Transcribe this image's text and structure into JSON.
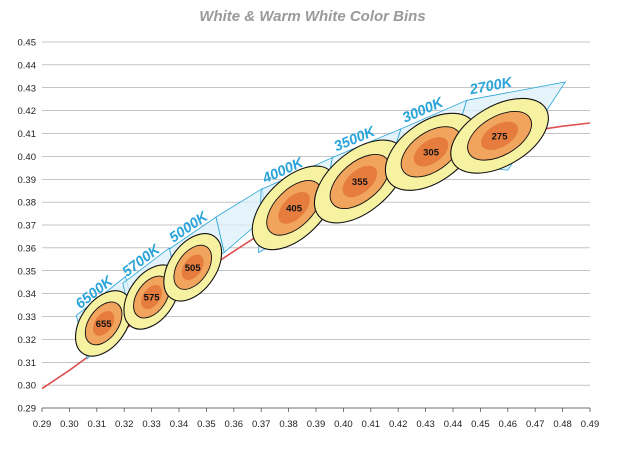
{
  "chart_data": {
    "type": "scatter",
    "title": "White & Warm White Color Bins",
    "xlabel": "",
    "ylabel": "",
    "xlim": [
      0.29,
      0.49
    ],
    "ylim": [
      0.29,
      0.45
    ],
    "x_ticks": [
      "0.29",
      "0.30",
      "0.31",
      "0.32",
      "0.33",
      "0.34",
      "0.35",
      "0.36",
      "0.37",
      "0.38",
      "0.39",
      "0.40",
      "0.41",
      "0.42",
      "0.43",
      "0.44",
      "0.45",
      "0.46",
      "0.47",
      "0.48",
      "0.49"
    ],
    "y_ticks": [
      "0.29",
      "0.30",
      "0.31",
      "0.32",
      "0.33",
      "0.34",
      "0.35",
      "0.36",
      "0.37",
      "0.38",
      "0.39",
      "0.40",
      "0.41",
      "0.42",
      "0.43",
      "0.44",
      "0.45"
    ],
    "grid": "horizontal",
    "colors": {
      "locus": "#e05050",
      "quad_fill": "#dcf0f8",
      "quad_stroke": "#2aa4d9",
      "outer_ellipse": "#f7f1a2",
      "inner_ellipse": "#f1a45e",
      "center_ellipse": "#e67d3e",
      "cct_label": "#2aa4d9"
    },
    "planckian_locus": {
      "x": [
        0.29,
        0.3,
        0.31,
        0.32,
        0.33,
        0.34,
        0.35,
        0.36,
        0.37,
        0.38,
        0.39,
        0.4,
        0.41,
        0.42,
        0.43,
        0.44,
        0.45,
        0.46,
        0.47,
        0.48,
        0.49
      ],
      "y": [
        0.2985,
        0.3065,
        0.3152,
        0.3242,
        0.3332,
        0.342,
        0.3505,
        0.3585,
        0.3663,
        0.3735,
        0.38,
        0.3858,
        0.3911,
        0.3958,
        0.3999,
        0.4035,
        0.4066,
        0.4092,
        0.4114,
        0.4132,
        0.4146
      ]
    },
    "bins": [
      {
        "cct": "6500K",
        "label": "655",
        "quad": [
          [
            0.3025,
            0.3305
          ],
          [
            0.3205,
            0.3475
          ],
          [
            0.3235,
            0.333
          ],
          [
            0.3065,
            0.3115
          ]
        ],
        "ellipse": {
          "cx": 0.3125,
          "cy": 0.327,
          "rx": 0.0092,
          "ry": 0.0095,
          "angle": -55
        }
      },
      {
        "cct": "5700K",
        "label": "575",
        "quad": [
          [
            0.3195,
            0.3445
          ],
          [
            0.3365,
            0.36
          ],
          [
            0.3395,
            0.346
          ],
          [
            0.3225,
            0.3285
          ]
        ],
        "ellipse": {
          "cx": 0.33,
          "cy": 0.3385,
          "rx": 0.009,
          "ry": 0.0094,
          "angle": -55
        }
      },
      {
        "cct": "5000K",
        "label": "505",
        "quad": [
          [
            0.3365,
            0.3595
          ],
          [
            0.3535,
            0.3735
          ],
          [
            0.3565,
            0.358
          ],
          [
            0.3395,
            0.3445
          ]
        ],
        "ellipse": {
          "cx": 0.345,
          "cy": 0.3515,
          "rx": 0.0095,
          "ry": 0.0097,
          "angle": -55
        }
      },
      {
        "cct": "",
        "label": "",
        "quad": [
          [
            0.3535,
            0.3735
          ],
          [
            0.3705,
            0.386
          ],
          [
            0.3715,
            0.3735
          ],
          [
            0.3565,
            0.358
          ]
        ],
        "ellipse": null
      },
      {
        "cct": "4000K",
        "label": "405",
        "quad": [
          [
            0.37,
            0.3855
          ],
          [
            0.396,
            0.3995
          ],
          [
            0.392,
            0.3735
          ],
          [
            0.369,
            0.358
          ]
        ],
        "ellipse": {
          "cx": 0.382,
          "cy": 0.3775,
          "rx": 0.013,
          "ry": 0.012,
          "angle": -45
        }
      },
      {
        "cct": "3500K",
        "label": "355",
        "quad": [
          [
            0.396,
            0.3995
          ],
          [
            0.421,
            0.412
          ],
          [
            0.415,
            0.3895
          ],
          [
            0.392,
            0.3735
          ]
        ],
        "ellipse": {
          "cx": 0.406,
          "cy": 0.389,
          "rx": 0.0135,
          "ry": 0.0125,
          "angle": -40
        }
      },
      {
        "cct": "3000K",
        "label": "305",
        "quad": [
          [
            0.421,
            0.412
          ],
          [
            0.445,
            0.4245
          ],
          [
            0.438,
            0.3965
          ],
          [
            0.415,
            0.3895
          ]
        ],
        "ellipse": {
          "cx": 0.432,
          "cy": 0.402,
          "rx": 0.013,
          "ry": 0.0125,
          "angle": -35
        }
      },
      {
        "cct": "2700K",
        "label": "275",
        "quad": [
          [
            0.445,
            0.4245
          ],
          [
            0.481,
            0.4325
          ],
          [
            0.46,
            0.394
          ],
          [
            0.438,
            0.3965
          ]
        ],
        "ellipse": {
          "cx": 0.457,
          "cy": 0.409,
          "rx": 0.0135,
          "ry": 0.0125,
          "angle": -30
        }
      }
    ]
  }
}
